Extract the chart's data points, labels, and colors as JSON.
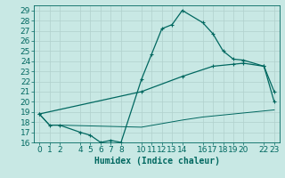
{
  "xlabel": "Humidex (Indice chaleur)",
  "xlim": [
    -0.5,
    23.5
  ],
  "ylim": [
    16,
    29.5
  ],
  "xticks": [
    0,
    1,
    2,
    4,
    5,
    6,
    7,
    8,
    10,
    11,
    12,
    13,
    14,
    16,
    17,
    18,
    19,
    20,
    22,
    23
  ],
  "yticks": [
    16,
    17,
    18,
    19,
    20,
    21,
    22,
    23,
    24,
    25,
    26,
    27,
    28,
    29
  ],
  "bg_color": "#c8e8e4",
  "grid_color": "#b0d0cc",
  "line_color": "#006860",
  "line1_x": [
    0,
    1,
    2,
    4,
    5,
    6,
    7,
    8,
    10,
    11,
    12,
    13,
    14,
    16,
    17,
    18,
    19,
    20,
    22,
    23
  ],
  "line1_y": [
    18.8,
    17.7,
    17.7,
    17.0,
    16.7,
    16.0,
    16.2,
    16.0,
    22.2,
    24.7,
    27.2,
    27.6,
    29.0,
    27.8,
    26.7,
    25.0,
    24.2,
    24.1,
    23.5,
    21.0
  ],
  "line2_x": [
    0,
    10,
    14,
    17,
    19,
    20,
    22,
    23
  ],
  "line2_y": [
    18.8,
    21.0,
    22.5,
    23.5,
    23.7,
    23.8,
    23.5,
    20.0
  ],
  "line3_x": [
    0,
    1,
    2,
    10,
    14,
    16,
    17,
    18,
    19,
    20,
    22,
    23
  ],
  "line3_y": [
    18.8,
    17.7,
    17.7,
    17.5,
    18.2,
    18.5,
    18.6,
    18.7,
    18.8,
    18.9,
    19.1,
    19.2
  ],
  "font_size": 6.5
}
